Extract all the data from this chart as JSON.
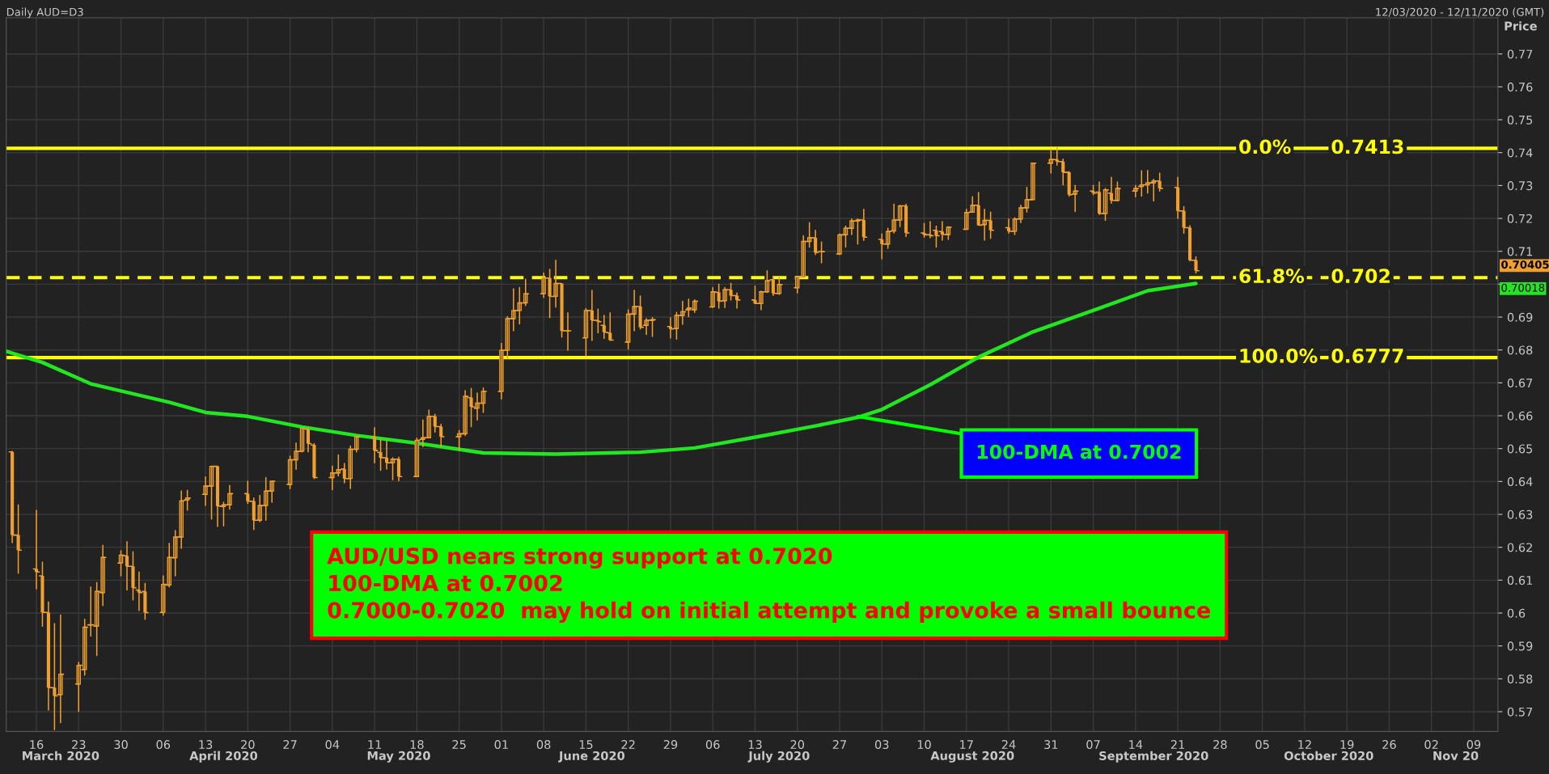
{
  "chart_data": {
    "type": "candlestick",
    "title": "Daily AUD=D3",
    "subtitle": "12/03/2020 - 12/11/2020 (GMT)",
    "ylabel": "Price",
    "xlim": [
      "2020-03-11",
      "2020-11-13"
    ],
    "ylim": [
      0.564,
      0.781
    ],
    "xticks": [
      {
        "value": "2020-03-16",
        "label": "16"
      },
      {
        "value": "2020-03-23",
        "label": "23"
      },
      {
        "value": "2020-03-30",
        "label": "30"
      },
      {
        "value": "2020-04-06",
        "label": "06"
      },
      {
        "value": "2020-04-13",
        "label": "13"
      },
      {
        "value": "2020-04-20",
        "label": "20"
      },
      {
        "value": "2020-04-27",
        "label": "27"
      },
      {
        "value": "2020-05-04",
        "label": "04"
      },
      {
        "value": "2020-05-11",
        "label": "11"
      },
      {
        "value": "2020-05-18",
        "label": "18"
      },
      {
        "value": "2020-05-25",
        "label": "25"
      },
      {
        "value": "2020-06-01",
        "label": "01"
      },
      {
        "value": "2020-06-08",
        "label": "08"
      },
      {
        "value": "2020-06-15",
        "label": "15"
      },
      {
        "value": "2020-06-22",
        "label": "22"
      },
      {
        "value": "2020-06-29",
        "label": "29"
      },
      {
        "value": "2020-07-06",
        "label": "06"
      },
      {
        "value": "2020-07-13",
        "label": "13"
      },
      {
        "value": "2020-07-20",
        "label": "20"
      },
      {
        "value": "2020-07-27",
        "label": "27"
      },
      {
        "value": "2020-08-03",
        "label": "03"
      },
      {
        "value": "2020-08-10",
        "label": "10"
      },
      {
        "value": "2020-08-17",
        "label": "17"
      },
      {
        "value": "2020-08-24",
        "label": "24"
      },
      {
        "value": "2020-08-31",
        "label": "31"
      },
      {
        "value": "2020-09-07",
        "label": "07"
      },
      {
        "value": "2020-09-14",
        "label": "14"
      },
      {
        "value": "2020-09-21",
        "label": "21"
      },
      {
        "value": "2020-09-28",
        "label": "28"
      },
      {
        "value": "2020-10-05",
        "label": "05"
      },
      {
        "value": "2020-10-12",
        "label": "12"
      },
      {
        "value": "2020-10-19",
        "label": "19"
      },
      {
        "value": "2020-10-26",
        "label": "26"
      },
      {
        "value": "2020-11-02",
        "label": "02"
      },
      {
        "value": "2020-11-09",
        "label": "09"
      }
    ],
    "x2lim": [
      "2020-03-11",
      "2020-11-13"
    ],
    "x2ticks": [
      {
        "value": "2020-03-20",
        "label": "March 2020"
      },
      {
        "value": "2020-04-16",
        "label": "April 2020"
      },
      {
        "value": "2020-05-15",
        "label": "May 2020"
      },
      {
        "value": "2020-06-16",
        "label": "June 2020"
      },
      {
        "value": "2020-07-17",
        "label": "July 2020"
      },
      {
        "value": "2020-08-18",
        "label": "August 2020"
      },
      {
        "value": "2020-09-17",
        "label": "September 2020"
      },
      {
        "value": "2020-10-16",
        "label": "October 2020"
      },
      {
        "value": "2020-11-06",
        "label": "Nov 20"
      }
    ],
    "yticks": [
      0.57,
      0.58,
      0.59,
      0.6,
      0.61,
      0.62,
      0.63,
      0.64,
      0.65,
      0.66,
      0.67,
      0.68,
      0.69,
      {
        "value": 0.7,
        "label": null
      },
      0.71,
      0.72,
      0.73,
      0.74,
      0.75,
      0.76,
      0.77
    ],
    "grid": true,
    "ref_lines": [
      {
        "axis": "y",
        "value": 0.7413,
        "label": "0.7413",
        "color": "#ffff00",
        "line_style": "solid"
      },
      {
        "axis": "y",
        "value": 0.702,
        "label": "0.702",
        "color": "#ffff00",
        "line_style": "dashed"
      },
      {
        "axis": "y",
        "value": 0.6777,
        "label": "0.6777",
        "color": "#ffff00",
        "line_style": "solid"
      }
    ],
    "annotations": [
      "AUD/USD nears strong support at 0.7020\n100-DMA at 0.7002\n0.7000-0.7020  may hold on initial attempt and provoke a small bounce",
      {
        "text": "100-DMA at 0.7002",
        "x": "2020-07-30",
        "y": 0.6598
      },
      "0.70405",
      "0.70018",
      {
        "text": "0.0%",
        "y": 0.7413
      },
      {
        "text": "61.8%",
        "y": 0.702
      },
      {
        "text": "100.0%",
        "y": 0.6777
      }
    ],
    "series": [
      {
        "type": "candlestick",
        "color": "#f0a030",
        "x": [
          "2020-03-12",
          "2020-03-13",
          "2020-03-16",
          "2020-03-17",
          "2020-03-18",
          "2020-03-19",
          "2020-03-20",
          "2020-03-23",
          "2020-03-24",
          "2020-03-25",
          "2020-03-26",
          "2020-03-27",
          "2020-03-30",
          "2020-03-31",
          "2020-04-01",
          "2020-04-02",
          "2020-04-03",
          "2020-04-06",
          "2020-04-07",
          "2020-04-08",
          "2020-04-09",
          "2020-04-10",
          "2020-04-13",
          "2020-04-14",
          "2020-04-15",
          "2020-04-16",
          "2020-04-17",
          "2020-04-20",
          "2020-04-21",
          "2020-04-22",
          "2020-04-23",
          "2020-04-24",
          "2020-04-27",
          "2020-04-28",
          "2020-04-29",
          "2020-04-30",
          "2020-05-01",
          "2020-05-04",
          "2020-05-05",
          "2020-05-06",
          "2020-05-07",
          "2020-05-08",
          "2020-05-11",
          "2020-05-12",
          "2020-05-13",
          "2020-05-14",
          "2020-05-15",
          "2020-05-18",
          "2020-05-19",
          "2020-05-20",
          "2020-05-21",
          "2020-05-22",
          "2020-05-25",
          "2020-05-26",
          "2020-05-27",
          "2020-05-28",
          "2020-05-29",
          "2020-06-01",
          "2020-06-02",
          "2020-06-03",
          "2020-06-04",
          "2020-06-05",
          "2020-06-08",
          "2020-06-09",
          "2020-06-10",
          "2020-06-11",
          "2020-06-12",
          "2020-06-15",
          "2020-06-16",
          "2020-06-17",
          "2020-06-18",
          "2020-06-19",
          "2020-06-22",
          "2020-06-23",
          "2020-06-24",
          "2020-06-25",
          "2020-06-26",
          "2020-06-29",
          "2020-06-30",
          "2020-07-01",
          "2020-07-02",
          "2020-07-03",
          "2020-07-06",
          "2020-07-07",
          "2020-07-08",
          "2020-07-09",
          "2020-07-10",
          "2020-07-13",
          "2020-07-14",
          "2020-07-15",
          "2020-07-16",
          "2020-07-17",
          "2020-07-20",
          "2020-07-21",
          "2020-07-22",
          "2020-07-23",
          "2020-07-24",
          "2020-07-27",
          "2020-07-28",
          "2020-07-29",
          "2020-07-30",
          "2020-07-31",
          "2020-08-03",
          "2020-08-04",
          "2020-08-05",
          "2020-08-06",
          "2020-08-07",
          "2020-08-10",
          "2020-08-11",
          "2020-08-12",
          "2020-08-13",
          "2020-08-14",
          "2020-08-17",
          "2020-08-18",
          "2020-08-19",
          "2020-08-20",
          "2020-08-21",
          "2020-08-24",
          "2020-08-25",
          "2020-08-26",
          "2020-08-27",
          "2020-08-28",
          "2020-08-31",
          "2020-09-01",
          "2020-09-02",
          "2020-09-03",
          "2020-09-04",
          "2020-09-07",
          "2020-09-08",
          "2020-09-09",
          "2020-09-10",
          "2020-09-11",
          "2020-09-14",
          "2020-09-15",
          "2020-09-16",
          "2020-09-17",
          "2020-09-18",
          "2020-09-21",
          "2020-09-22",
          "2020-09-23",
          "2020-09-24"
        ],
        "ohlc": [
          [
            0.649,
            0.6492,
            0.6214,
            0.6237
          ],
          [
            0.6237,
            0.6329,
            0.6121,
            0.6191
          ],
          [
            0.6134,
            0.6312,
            0.6074,
            0.6125
          ],
          [
            0.6113,
            0.6155,
            0.596,
            0.6002
          ],
          [
            0.6002,
            0.6034,
            0.5705,
            0.5773
          ],
          [
            0.5773,
            0.5968,
            0.5645,
            0.5748
          ],
          [
            0.5752,
            0.5994,
            0.5667,
            0.5814
          ],
          [
            0.5784,
            0.585,
            0.5701,
            0.5841
          ],
          [
            0.5828,
            0.5981,
            0.5811,
            0.5957
          ],
          [
            0.5964,
            0.6079,
            0.593,
            0.5964
          ],
          [
            0.596,
            0.6093,
            0.5871,
            0.6066
          ],
          [
            0.6062,
            0.6206,
            0.6023,
            0.6169
          ],
          [
            0.6152,
            0.6189,
            0.6113,
            0.6176
          ],
          [
            0.6174,
            0.6217,
            0.607,
            0.6142
          ],
          [
            0.6142,
            0.6186,
            0.604,
            0.6077
          ],
          [
            0.607,
            0.6125,
            0.6008,
            0.6062
          ],
          [
            0.6066,
            0.609,
            0.5981,
            0.6001
          ],
          [
            0.6002,
            0.6113,
            0.5994,
            0.6087
          ],
          [
            0.6085,
            0.6212,
            0.6079,
            0.6169
          ],
          [
            0.6168,
            0.6251,
            0.6113,
            0.6231
          ],
          [
            0.6231,
            0.6371,
            0.6197,
            0.6341
          ],
          [
            0.6344,
            0.6373,
            0.6313,
            0.635
          ],
          [
            0.6361,
            0.6414,
            0.6327,
            0.6386
          ],
          [
            0.6386,
            0.6447,
            0.6286,
            0.6446
          ],
          [
            0.6446,
            0.6447,
            0.6263,
            0.6325
          ],
          [
            0.6324,
            0.6337,
            0.6265,
            0.6329
          ],
          [
            0.6329,
            0.6388,
            0.6316,
            0.6363
          ],
          [
            0.6363,
            0.6401,
            0.6333,
            0.634
          ],
          [
            0.634,
            0.635,
            0.6254,
            0.6282
          ],
          [
            0.6282,
            0.6358,
            0.6278,
            0.6327
          ],
          [
            0.6327,
            0.6412,
            0.6282,
            0.6371
          ],
          [
            0.6371,
            0.6401,
            0.6337,
            0.6401
          ],
          [
            0.6391,
            0.6477,
            0.6378,
            0.6466
          ],
          [
            0.6466,
            0.6517,
            0.6437,
            0.6492
          ],
          [
            0.6492,
            0.6562,
            0.649,
            0.6562
          ],
          [
            0.6559,
            0.6562,
            0.649,
            0.6515
          ],
          [
            0.6511,
            0.6515,
            0.6409,
            0.6412
          ],
          [
            0.6412,
            0.6447,
            0.6375,
            0.6426
          ],
          [
            0.6426,
            0.6481,
            0.6417,
            0.6436
          ],
          [
            0.6438,
            0.6455,
            0.6396,
            0.6409
          ],
          [
            0.6409,
            0.6508,
            0.6379,
            0.6498
          ],
          [
            0.6498,
            0.6536,
            0.649,
            0.6536
          ],
          [
            0.6536,
            0.6564,
            0.6457,
            0.6494
          ],
          [
            0.6489,
            0.6528,
            0.6434,
            0.6472
          ],
          [
            0.6472,
            0.6523,
            0.6438,
            0.6457
          ],
          [
            0.6457,
            0.6472,
            0.6405,
            0.6468
          ],
          [
            0.6468,
            0.6474,
            0.6402,
            0.6415
          ],
          [
            0.6415,
            0.6532,
            0.6415,
            0.6525
          ],
          [
            0.6528,
            0.6587,
            0.6506,
            0.6533
          ],
          [
            0.6533,
            0.6617,
            0.6533,
            0.6598
          ],
          [
            0.6598,
            0.6604,
            0.655,
            0.6567
          ],
          [
            0.6567,
            0.6574,
            0.6506,
            0.6536
          ],
          [
            0.6536,
            0.6555,
            0.6494,
            0.6545
          ],
          [
            0.6545,
            0.6676,
            0.654,
            0.6659
          ],
          [
            0.6655,
            0.6683,
            0.6567,
            0.6627
          ],
          [
            0.6623,
            0.6669,
            0.6587,
            0.6638
          ],
          [
            0.6638,
            0.6684,
            0.661,
            0.6674
          ],
          [
            0.6674,
            0.682,
            0.6651,
            0.6799
          ],
          [
            0.6799,
            0.6901,
            0.6773,
            0.6895
          ],
          [
            0.6895,
            0.6986,
            0.6858,
            0.692
          ],
          [
            0.692,
            0.699,
            0.6879,
            0.6943
          ],
          [
            0.6943,
            0.7015,
            0.6935,
            0.6971
          ],
          [
            0.6971,
            0.7034,
            0.696,
            0.7019
          ],
          [
            0.7019,
            0.7045,
            0.6898,
            0.6963
          ],
          [
            0.6963,
            0.7073,
            0.693,
            0.7002
          ],
          [
            0.7002,
            0.7002,
            0.6839,
            0.6858
          ],
          [
            0.6858,
            0.6913,
            0.6799,
            0.6858
          ],
          [
            0.6837,
            0.6926,
            0.6782,
            0.692
          ],
          [
            0.692,
            0.6981,
            0.6829,
            0.689
          ],
          [
            0.689,
            0.6924,
            0.6852,
            0.6886
          ],
          [
            0.6875,
            0.6905,
            0.6835,
            0.6854
          ],
          [
            0.6852,
            0.6913,
            0.6829,
            0.683
          ],
          [
            0.6824,
            0.6922,
            0.6803,
            0.6909
          ],
          [
            0.6909,
            0.6981,
            0.6858,
            0.6932
          ],
          [
            0.6932,
            0.6964,
            0.6864,
            0.6869
          ],
          [
            0.6875,
            0.6895,
            0.6847,
            0.689
          ],
          [
            0.689,
            0.6898,
            0.6841,
            0.6892
          ],
          [
            0.6871,
            0.6898,
            0.6837,
            0.6864
          ],
          [
            0.6865,
            0.6914,
            0.6833,
            0.6905
          ],
          [
            0.6905,
            0.6948,
            0.6878,
            0.6916
          ],
          [
            0.6922,
            0.6955,
            0.6901,
            0.6927
          ],
          [
            0.6922,
            0.6952,
            0.6914,
            0.6948
          ],
          [
            0.6931,
            0.699,
            0.6929,
            0.6977
          ],
          [
            0.6975,
            0.7,
            0.6927,
            0.6948
          ],
          [
            0.695,
            0.699,
            0.6929,
            0.6983
          ],
          [
            0.6983,
            0.7003,
            0.6952,
            0.6965
          ],
          [
            0.6965,
            0.6973,
            0.6927,
            0.6952
          ],
          [
            0.6952,
            0.6994,
            0.6941,
            0.6941
          ],
          [
            0.6941,
            0.6979,
            0.6922,
            0.6977
          ],
          [
            0.6977,
            0.7041,
            0.6975,
            0.7011
          ],
          [
            0.7014,
            0.7024,
            0.6966,
            0.6972
          ],
          [
            0.6972,
            0.702,
            0.6969,
            0.6999
          ],
          [
            0.6989,
            0.7024,
            0.6973,
            0.7022
          ],
          [
            0.7022,
            0.7147,
            0.702,
            0.713
          ],
          [
            0.713,
            0.7187,
            0.7113,
            0.7141
          ],
          [
            0.7141,
            0.7164,
            0.709,
            0.7096
          ],
          [
            0.71,
            0.7128,
            0.7065,
            0.7099
          ],
          [
            0.7092,
            0.7153,
            0.709,
            0.715
          ],
          [
            0.715,
            0.7177,
            0.7113,
            0.717
          ],
          [
            0.717,
            0.7198,
            0.7151,
            0.7192
          ],
          [
            0.7192,
            0.7198,
            0.7122,
            0.7195
          ],
          [
            0.7195,
            0.7228,
            0.7133,
            0.7143
          ],
          [
            0.7136,
            0.7153,
            0.7077,
            0.7122
          ],
          [
            0.7122,
            0.717,
            0.7109,
            0.716
          ],
          [
            0.7162,
            0.7243,
            0.7156,
            0.7195
          ],
          [
            0.7195,
            0.724,
            0.7175,
            0.7238
          ],
          [
            0.7238,
            0.7243,
            0.7145,
            0.7156
          ],
          [
            0.7156,
            0.7185,
            0.7143,
            0.715
          ],
          [
            0.7151,
            0.719,
            0.7141,
            0.7147
          ],
          [
            0.7164,
            0.7177,
            0.7113,
            0.7147
          ],
          [
            0.716,
            0.719,
            0.7134,
            0.7151
          ],
          [
            0.7151,
            0.7175,
            0.7136,
            0.7173
          ],
          [
            0.7167,
            0.7228,
            0.7167,
            0.7218
          ],
          [
            0.7219,
            0.7266,
            0.7219,
            0.724
          ],
          [
            0.724,
            0.7279,
            0.7179,
            0.7179
          ],
          [
            0.7181,
            0.7228,
            0.7134,
            0.7194
          ],
          [
            0.7194,
            0.7219,
            0.7139,
            0.7164
          ],
          [
            0.7172,
            0.7198,
            0.7155,
            0.7161
          ],
          [
            0.7161,
            0.7202,
            0.7151,
            0.7198
          ],
          [
            0.7198,
            0.724,
            0.7187,
            0.7232
          ],
          [
            0.7232,
            0.7294,
            0.7219,
            0.7257
          ],
          [
            0.7257,
            0.7368,
            0.7257,
            0.7368
          ],
          [
            0.7368,
            0.741,
            0.7338,
            0.7379
          ],
          [
            0.7379,
            0.7414,
            0.7362,
            0.7373
          ],
          [
            0.7373,
            0.738,
            0.7302,
            0.734
          ],
          [
            0.734,
            0.7342,
            0.7268,
            0.7272
          ],
          [
            0.7274,
            0.73,
            0.7221,
            0.7283
          ],
          [
            0.7283,
            0.73,
            0.7272,
            0.7277
          ],
          [
            0.728,
            0.7311,
            0.7212,
            0.7215
          ],
          [
            0.7215,
            0.7291,
            0.7194,
            0.7287
          ],
          [
            0.7277,
            0.7325,
            0.7246,
            0.7255
          ],
          [
            0.7255,
            0.7311,
            0.7253,
            0.7291
          ],
          [
            0.7283,
            0.73,
            0.7266,
            0.7291
          ],
          [
            0.7297,
            0.7345,
            0.7268,
            0.7302
          ],
          [
            0.7302,
            0.7346,
            0.7277,
            0.7308
          ],
          [
            0.7308,
            0.7319,
            0.7253,
            0.7314
          ],
          [
            0.7314,
            0.7338,
            0.7283,
            0.7291
          ],
          [
            0.7294,
            0.7325,
            0.72,
            0.7223
          ],
          [
            0.7223,
            0.7236,
            0.7155,
            0.7172
          ],
          [
            0.7172,
            0.7178,
            0.7071,
            0.7073
          ],
          [
            0.7073,
            0.7083,
            0.7034,
            0.7041
          ]
        ]
      },
      {
        "type": "line",
        "color": "#22e622",
        "x": [
          "2020-03-11",
          "2020-03-17",
          "2020-03-25",
          "2020-04-07",
          "2020-04-13",
          "2020-04-20",
          "2020-04-29",
          "2020-05-08",
          "2020-05-19",
          "2020-05-29",
          "2020-06-10",
          "2020-06-24",
          "2020-07-03",
          "2020-07-14",
          "2020-07-23",
          "2020-07-30",
          "2020-08-03",
          "2020-08-11",
          "2020-08-19",
          "2020-08-28",
          "2020-09-08",
          "2020-09-16",
          "2020-09-24"
        ],
        "values": [
          0.6796,
          0.6762,
          0.6697,
          0.6641,
          0.661,
          0.6598,
          0.6566,
          0.654,
          0.6514,
          0.6487,
          0.6483,
          0.6489,
          0.6502,
          0.6538,
          0.6569,
          0.6595,
          0.6619,
          0.6694,
          0.6778,
          0.6855,
          0.6927,
          0.698,
          0.7002
        ]
      }
    ]
  }
}
